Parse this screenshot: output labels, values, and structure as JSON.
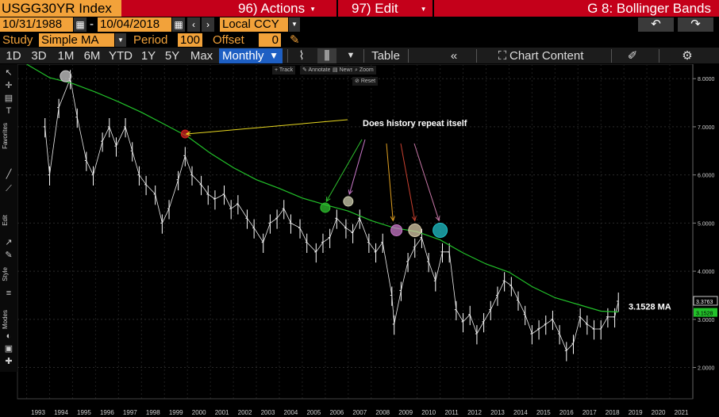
{
  "header": {
    "ticker": "USGG30YR Index",
    "actions": "96) Actions",
    "edit": "97) Edit",
    "title": "G 8: Bollinger Bands"
  },
  "dates": {
    "start": "10/31/1988",
    "sep": "-",
    "end": "10/04/2018",
    "currency": "Local CCY"
  },
  "study": {
    "label": "Study",
    "value": "Simple MA",
    "period_label": "Period",
    "period": "100",
    "offset_label": "Offset",
    "offset": "0"
  },
  "toolbar": {
    "ranges": [
      "1D",
      "3D",
      "1M",
      "6M",
      "YTD",
      "1Y",
      "5Y",
      "Max"
    ],
    "frequency": "Monthly",
    "table": "Table",
    "chart_content": "Chart Content"
  },
  "mini_tools": {
    "track": "Track",
    "annotate": "Annotate",
    "news": "News",
    "zoom": "Zoom",
    "reset": "Reset"
  },
  "side_labels": [
    "Favorites",
    "Edit",
    "Style",
    "Modes"
  ],
  "colors": {
    "accent": "#f2a23a",
    "header_red": "#c4001a",
    "ma_line": "#22c22a",
    "price": "#ffffff",
    "selected": "#1e5fc3"
  },
  "chart_data": {
    "type": "line",
    "title": "",
    "xlabel": "",
    "ylabel": "",
    "x_ticks": [
      "1993",
      "1994",
      "1995",
      "1996",
      "1997",
      "1998",
      "1999",
      "2000",
      "2001",
      "2002",
      "2003",
      "2004",
      "2005",
      "2006",
      "2007",
      "2008",
      "2009",
      "2010",
      "2011",
      "2012",
      "2013",
      "2014",
      "2015",
      "2016",
      "2017",
      "2018",
      "2019",
      "2020",
      "2021"
    ],
    "y_ticks": [
      "2.0000",
      "3.0000",
      "4.0000",
      "5.0000",
      "6.0000",
      "7.0000",
      "8.0000"
    ],
    "ylim": [
      1.35,
      8.3
    ],
    "xlim": [
      1992.6,
      2022.0
    ],
    "series": [
      {
        "x": [
          1993.8,
          1994.0,
          1994.4,
          1994.9,
          1995.2,
          1995.6,
          1995.9,
          1996.3,
          1996.6,
          1996.9,
          1997.3,
          1997.6,
          1997.9,
          1998.2,
          1998.6,
          1998.9,
          1999.2,
          1999.6,
          1999.9,
          2000.2,
          2000.6,
          2000.9,
          2001.2,
          2001.6,
          2001.9,
          2002.2,
          2002.6,
          2002.9,
          2003.3,
          2003.6,
          2003.9,
          2004.2,
          2004.5,
          2004.9,
          2005.2,
          2005.6,
          2005.9,
          2006.2,
          2006.5,
          2006.9,
          2007.2,
          2007.5,
          2007.9,
          2008.2,
          2008.5,
          2008.9,
          2009.0,
          2009.3,
          2009.6,
          2009.9,
          2010.2,
          2010.5,
          2010.8,
          2011.1,
          2011.4,
          2011.7,
          2012.0,
          2012.3,
          2012.6,
          2012.9,
          2013.2,
          2013.5,
          2013.8,
          2014.1,
          2014.4,
          2014.7,
          2015.0,
          2015.3,
          2015.6,
          2015.9,
          2016.2,
          2016.5,
          2016.8,
          2017.1,
          2017.4,
          2017.7,
          2018.0,
          2018.3,
          2018.6,
          2018.76
        ],
        "values": [
          7.0,
          6.0,
          7.4,
          8.0,
          7.2,
          6.3,
          6.0,
          6.7,
          7.0,
          6.6,
          7.0,
          6.5,
          6.0,
          5.8,
          5.6,
          5.0,
          5.3,
          5.9,
          6.4,
          6.0,
          5.8,
          5.6,
          5.5,
          5.6,
          5.3,
          5.4,
          5.1,
          4.9,
          4.6,
          5.0,
          5.1,
          5.3,
          5.0,
          4.9,
          4.6,
          4.4,
          4.6,
          4.7,
          5.1,
          4.9,
          4.8,
          5.1,
          4.6,
          4.4,
          4.6,
          3.5,
          2.9,
          3.6,
          4.2,
          4.5,
          4.7,
          4.2,
          3.8,
          4.4,
          4.4,
          3.2,
          2.95,
          3.1,
          2.7,
          2.95,
          3.2,
          3.5,
          3.8,
          3.7,
          3.4,
          3.1,
          2.7,
          2.8,
          2.9,
          3.0,
          2.7,
          2.35,
          2.5,
          3.05,
          2.9,
          2.8,
          2.8,
          3.05,
          3.05,
          3.3763
        ]
      },
      {
        "name": "MA",
        "x": [
          1993.0,
          1994.0,
          1995.0,
          1996.0,
          1997.0,
          1998.0,
          1999.0,
          2000.0,
          2001.0,
          2002.0,
          2003.0,
          2004.0,
          2005.0,
          2006.0,
          2007.0,
          2008.0,
          2009.0,
          2010.0,
          2011.0,
          2012.0,
          2013.0,
          2014.0,
          2015.0,
          2016.0,
          2017.0,
          2018.0,
          2018.76
        ],
        "values": [
          8.3,
          8.02,
          7.9,
          7.72,
          7.52,
          7.3,
          7.05,
          6.8,
          6.45,
          6.15,
          5.9,
          5.72,
          5.52,
          5.38,
          5.25,
          5.05,
          4.9,
          4.82,
          4.65,
          4.38,
          4.15,
          3.98,
          3.68,
          3.45,
          3.31,
          3.17,
          3.1528
        ]
      }
    ],
    "last_price": "3.3763",
    "ma_value": "3.1528",
    "ma_label": "3.1528 MA",
    "annotation": "Does history repeat itself",
    "grid": true
  }
}
